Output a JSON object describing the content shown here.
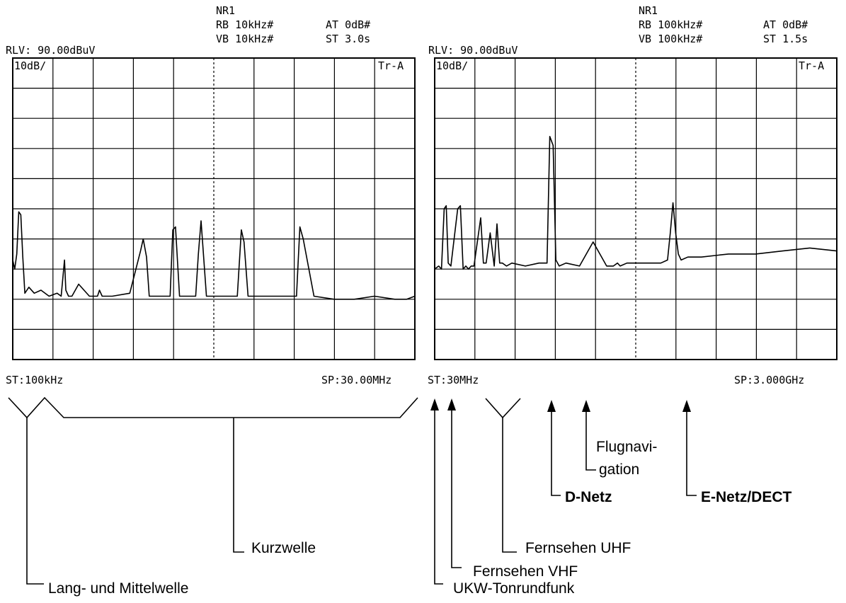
{
  "chart_data": [
    {
      "type": "line",
      "header": {
        "nr": "NR1",
        "rb": "RB 10kHz#",
        "at": "AT 0dB#",
        "rlv": "RLV: 90.00dBuV",
        "vb": "VB 10kHz#",
        "st_time": "ST 3.0s"
      },
      "scale_label": "10dB/",
      "trace_label": "Tr-A",
      "start_label": "ST:100kHz",
      "stop_label": "SP:30.00MHz",
      "x_unit": "MHz",
      "y_unit": "dBuV",
      "xlim": [
        0.1,
        30.0
      ],
      "ylim": [
        -10,
        90
      ],
      "grid": true,
      "x": [
        0.1,
        0.25,
        0.4,
        0.55,
        0.7,
        0.85,
        1.0,
        1.3,
        1.7,
        2.2,
        2.8,
        3.4,
        3.7,
        3.95,
        4.05,
        4.25,
        4.5,
        5.0,
        5.8,
        6.4,
        6.55,
        6.75,
        7.5,
        8.8,
        9.6,
        9.8,
        10.05,
        10.25,
        11.0,
        11.8,
        12.0,
        12.2,
        12.5,
        13.3,
        13.7,
        13.9,
        14.1,
        14.5,
        15.2,
        16.0,
        16.8,
        17.1,
        17.3,
        17.6,
        18.3,
        19.2,
        20.0,
        20.8,
        21.2,
        21.45,
        21.7,
        22.5,
        24.0,
        25.5,
        27.0,
        28.5,
        29.4,
        30.0
      ],
      "y": [
        23,
        20,
        25,
        39,
        38,
        24,
        12,
        14,
        12,
        13,
        11,
        12,
        11,
        23,
        13,
        11,
        11,
        15,
        11,
        11,
        13,
        11,
        11,
        12,
        26,
        30,
        24,
        11,
        11,
        11,
        33,
        34,
        11,
        11,
        11,
        25,
        36,
        11,
        11,
        11,
        11,
        33,
        29,
        11,
        11,
        11,
        11,
        11,
        11,
        34,
        30,
        11,
        10,
        10,
        11,
        10,
        10,
        11
      ],
      "annotations": [
        {
          "text": "Lang- und Mittelwelle"
        },
        {
          "text": "Kurzwelle"
        }
      ]
    },
    {
      "type": "line",
      "header": {
        "nr": "NR1",
        "rb": "RB 100kHz#",
        "at": "AT 0dB#",
        "rlv": "RLV: 90.00dBuV",
        "vb": "VB 100kHz#",
        "st_time": "ST 1.5s"
      },
      "scale_label": "10dB/",
      "trace_label": "Tr-A",
      "start_label": "ST:30MHz",
      "stop_label": "SP:3.000GHz",
      "x_unit": "MHz",
      "y_unit": "dBuV",
      "xlim": [
        30,
        3000
      ],
      "ylim": [
        -10,
        90
      ],
      "grid": true,
      "x": [
        30,
        60,
        80,
        100,
        115,
        130,
        150,
        200,
        220,
        240,
        260,
        280,
        300,
        320,
        370,
        390,
        410,
        440,
        470,
        490,
        510,
        530,
        560,
        600,
        700,
        800,
        860,
        880,
        905,
        925,
        950,
        1000,
        1100,
        1200,
        1300,
        1350,
        1380,
        1400,
        1450,
        1500,
        1600,
        1700,
        1750,
        1770,
        1790,
        1810,
        1830,
        1850,
        1900,
        2000,
        2200,
        2400,
        2600,
        2800,
        3000
      ],
      "y": [
        20,
        21,
        20,
        40,
        41,
        22,
        21,
        40,
        41,
        20,
        21,
        20,
        21,
        21,
        37,
        22,
        22,
        32,
        21,
        35,
        22,
        22,
        21,
        22,
        21,
        22,
        22,
        64,
        61,
        23,
        21,
        22,
        21,
        29,
        21,
        21,
        22,
        21,
        22,
        22,
        22,
        22,
        23,
        32,
        42,
        32,
        25,
        23,
        24,
        24,
        25,
        25,
        26,
        27,
        26
      ],
      "annotations": [
        {
          "text": "UKW-Tonrundfunk"
        },
        {
          "text": "Fernsehen VHF"
        },
        {
          "text": "Fernsehen UHF"
        },
        {
          "text": "D-Netz"
        },
        {
          "text": "Flugnavi-"
        },
        {
          "text": "gation"
        },
        {
          "text": "E-Netz/DECT"
        }
      ]
    }
  ]
}
